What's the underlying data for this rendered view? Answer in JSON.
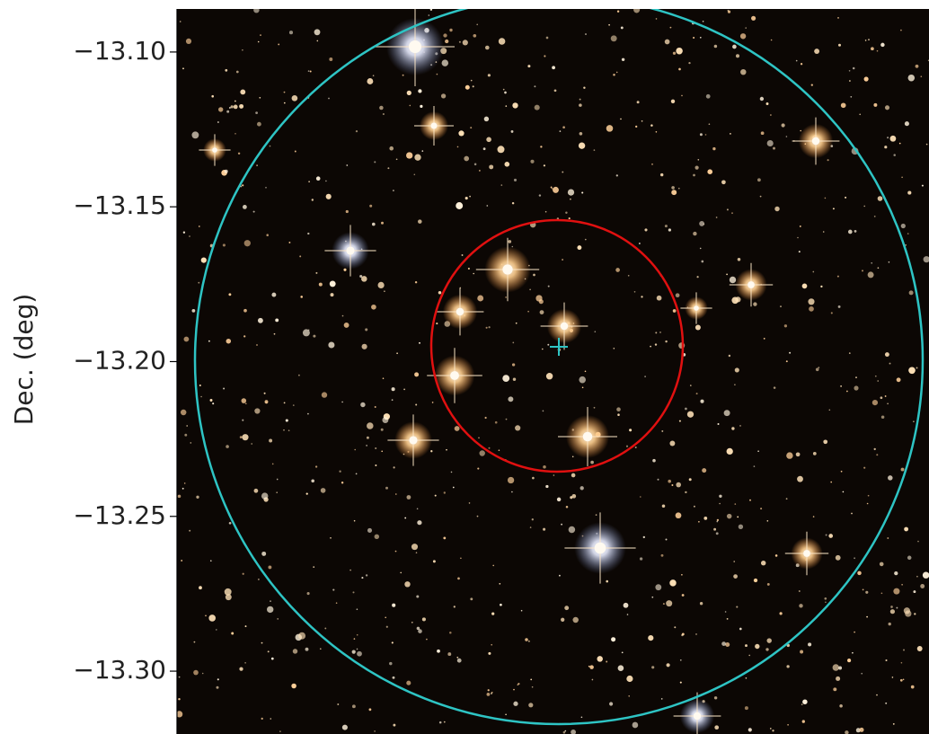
{
  "chart_data": {
    "type": "image",
    "ylabel": "Dec. (deg)",
    "ylim": [
      -13.3203,
      -13.0861
    ],
    "yticks": [
      {
        "value": -13.1,
        "label": "−13.10"
      },
      {
        "value": -13.15,
        "label": "−13.15"
      },
      {
        "value": -13.2,
        "label": "−13.20"
      },
      {
        "value": -13.25,
        "label": "−13.25"
      },
      {
        "value": -13.3,
        "label": "−13.30"
      }
    ]
  }
}
